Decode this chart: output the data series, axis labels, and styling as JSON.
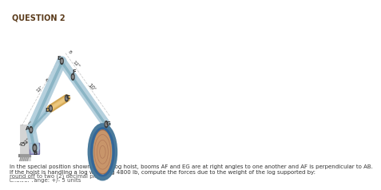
{
  "title": "QUESTION 2",
  "title_fontsize": 7,
  "title_color": "#5a3a1a",
  "body_text": "In the special position shown for the log hoist, booms AF and EG are at right angles to one another and AF is perpendicular to AB.\nIf the hoist is handling a log weighing 4800 lb, compute the forces due to the weight of the log supported by:",
  "body_fontsize": 5.0,
  "note1": "round off to two (2) decimal places",
  "note2": "answer range: +/- 5 units",
  "note_fontsize": 5.0,
  "boom_color": "#a8c8d8",
  "boom_color2": "#7aaabb",
  "hydraulic_color": "#d4a855",
  "joint_color": "#555555",
  "log_color": "#c8956a",
  "log_ring_color": "#4a7a9b",
  "background": "#ffffff",
  "dim_color": "#888888",
  "dim_fontsize": 4.5,
  "label_fontsize": 5.0,
  "label_color": "#333333",
  "angle_label": "45°",
  "wall_color": "#aaaaaa",
  "ground_color": "#888888"
}
